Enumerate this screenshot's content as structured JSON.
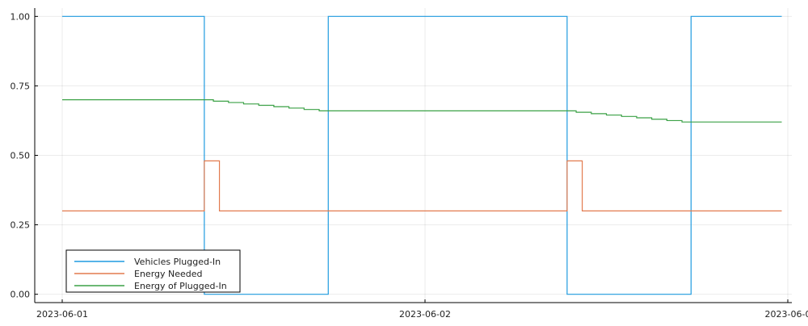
{
  "chart_data": {
    "type": "line",
    "step": true,
    "x_ticks": [
      "2023-06-01",
      "2023-06-02",
      "2023-06-0"
    ],
    "y_ticks": [
      "0.00",
      "0.25",
      "0.50",
      "0.75",
      "1.00"
    ],
    "xlim": [
      "2023-06-01T00:00",
      "2023-06-03T00:00"
    ],
    "ylim": [
      -0.03,
      1.03
    ],
    "grid": true,
    "legend_position": "bottom-left",
    "series": [
      {
        "name": "Vehicles Plugged-In",
        "color": "#1f9be0",
        "x": [
          "2023-06-01T00:00",
          "2023-06-01T09:24",
          "2023-06-01T17:36",
          "2023-06-02T09:24",
          "2023-06-02T17:36",
          "2023-06-02T23:36"
        ],
        "y": [
          1.0,
          0.0,
          1.0,
          0.0,
          1.0,
          1.0
        ]
      },
      {
        "name": "Energy Needed",
        "color": "#e27a4e",
        "x": [
          "2023-06-01T00:00",
          "2023-06-01T09:24",
          "2023-06-01T10:24",
          "2023-06-02T09:24",
          "2023-06-02T10:24",
          "2023-06-02T23:36"
        ],
        "y": [
          0.3,
          0.48,
          0.3,
          0.48,
          0.3,
          0.3
        ]
      },
      {
        "name": "Energy of Plugged-In",
        "color": "#3ba146",
        "x": [
          "2023-06-01T00:00",
          "2023-06-01T10:00",
          "2023-06-01T11:00",
          "2023-06-01T12:00",
          "2023-06-01T13:00",
          "2023-06-01T14:00",
          "2023-06-01T15:00",
          "2023-06-01T16:00",
          "2023-06-01T17:00",
          "2023-06-02T10:00",
          "2023-06-02T11:00",
          "2023-06-02T12:00",
          "2023-06-02T13:00",
          "2023-06-02T14:00",
          "2023-06-02T15:00",
          "2023-06-02T16:00",
          "2023-06-02T17:00",
          "2023-06-02T23:36"
        ],
        "y": [
          0.7,
          0.695,
          0.69,
          0.685,
          0.68,
          0.675,
          0.67,
          0.665,
          0.66,
          0.655,
          0.65,
          0.645,
          0.64,
          0.635,
          0.63,
          0.625,
          0.62,
          0.62
        ]
      }
    ]
  }
}
